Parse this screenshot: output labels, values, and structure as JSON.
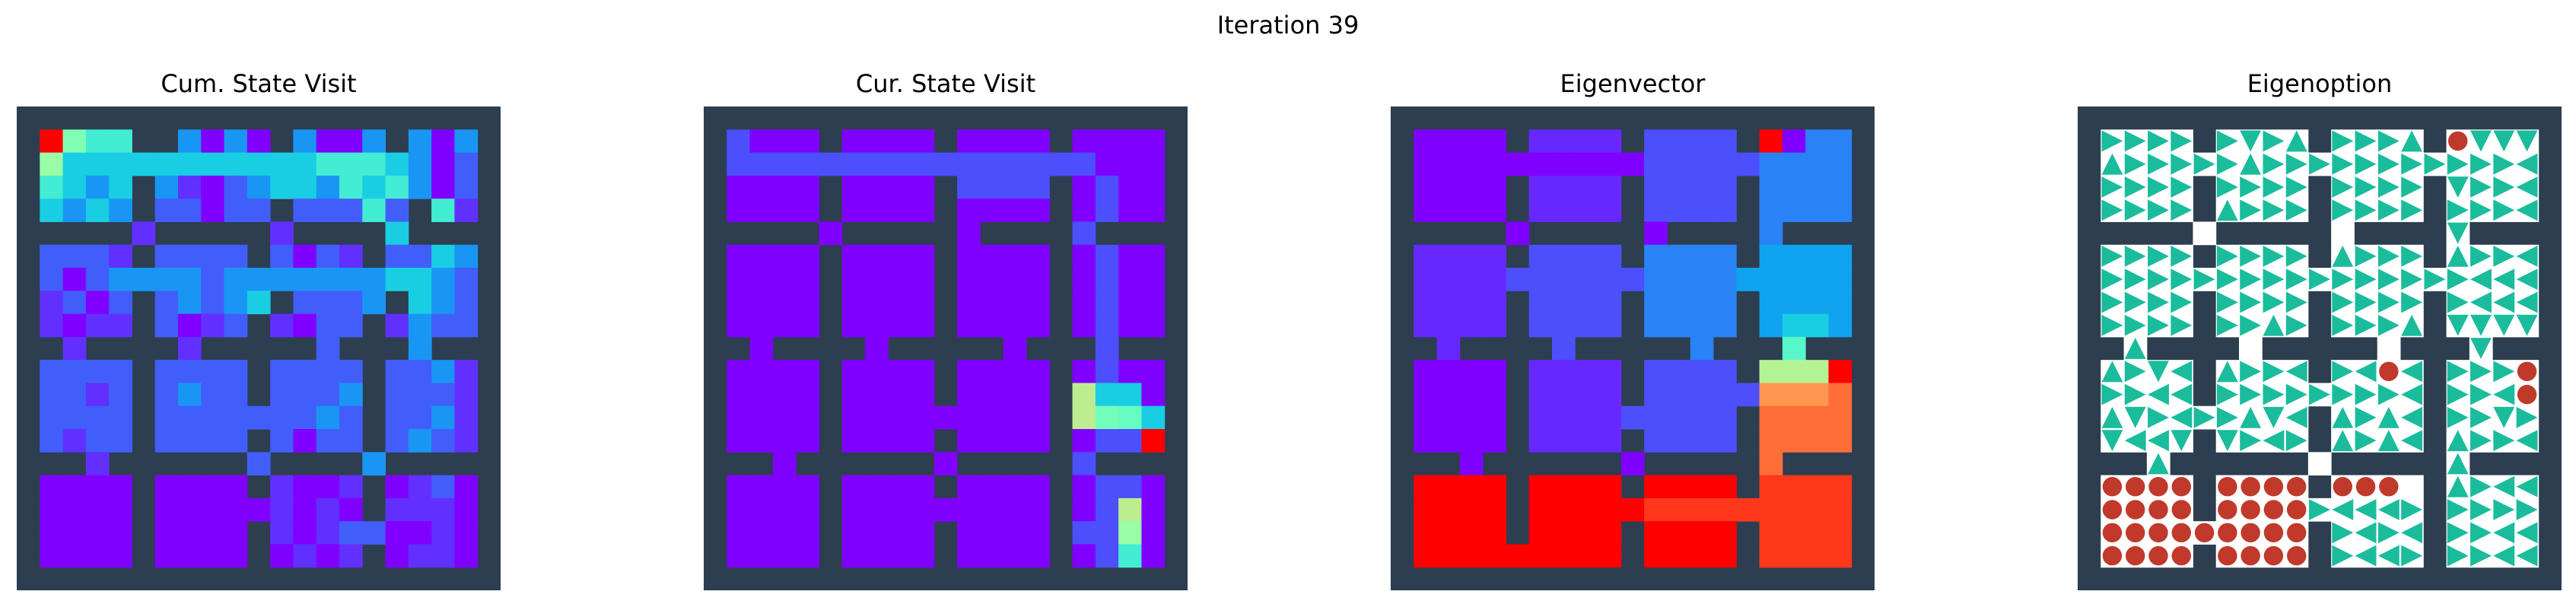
{
  "figure": {
    "title": "Iteration 39"
  },
  "chart_data": [
    {
      "type": "heatmap",
      "title": "Cum. State Visit",
      "encoding": "values 0-1 mapped to rainbow colormap; null = wall",
      "ascii": [
        "#####################",
        "#HFEE##C.C.#C..C#C.C#",
        "#GDDDDDDDDDDDEEEDC.B#",
        "#EDCD#CA.BCDDCEDEC.B#",
        "#DCDC#BB.BB#BBBEB#EA#",
        "#####A#####A####D####",
        "#BBBA#BBBB#B.BA#BBDC#",
        "#B.BCCCCBCCCCCCCDDCB#",
        "#AB.B#BCBCD#BBBC#DCB#",
        "#A.AA#B.AB#A.BB#ACBB#",
        "##A####A#####B###C###",
        "#BBBB#BBBB#BBBB#BBCA#",
        "#BBAB#BCBB#BBBC#BBBA#",
        "#BBBB#BBBBBBBCB#BBCA#",
        "#BABB#BBBB#B.BB#BCBA#",
        "###A######B####C#####",
        "#....#....#A..A#.AB.#",
        "#....#.....A.A.#AAA.#",
        "#....#....#A.ABB..A.#",
        "#....#....#.A.A#.AA.#",
        "#####################"
      ],
      "levels": {
        ".": 0.0,
        "A": 0.06,
        "B": 0.12,
        "C": 0.2,
        "D": 0.3,
        "E": 0.38,
        "F": 0.5,
        "G": 0.55,
        "H": 1.0
      }
    },
    {
      "type": "heatmap",
      "title": "Cur. State Visit",
      "encoding": "values 0-1 mapped to rainbow colormap; null = wall",
      "ascii": [
        "#####################",
        "#A...#....#....#....#",
        "#AAAAAAAAAAAAAAAA...#",
        "#....#....#AAAA#.A..#",
        "#....#....#....#.A..#",
        "#####.#####.####A####",
        "#....#....#....#.A..#",
        "#....#....#....#.A..#",
        "#....#....#....#.A..#",
        "#....#....#....#.A..#",
        "##.####.#####.###A###",
        "#....#....#....#.A..#",
        "#....#....#....#JDD.#",
        "#....#.........#JHFD#",
        "#....#....#....#.AAZ#",
        "###.######.#####A####",
        "#....#....#....#.AA.#",
        "#....#.........#.AJ.#",
        "#....#....#....#AAG.#",
        "#....#....#....#.AE.#",
        "#####################"
      ],
      "levels": {
        ".": 0.0,
        "A": 0.1,
        "D": 0.3,
        "E": 0.38,
        "F": 0.45,
        "G": 0.55,
        "H": 0.48,
        "J": 0.62,
        "Z": 1.0
      }
    },
    {
      "type": "heatmap",
      "title": "Eigenvector",
      "encoding": "values 0-1 mapped to rainbow colormap; null = wall",
      "ascii": [
        "#####################",
        "#....#AAAA#BBBB#Z.CC#",
        "#..........BBBBBCCCC#",
        "#....#AAAA#BBBB#CCCC#",
        "#....#AAAA#BBBB#CCCC#",
        "#####.#####.####C####",
        "#AAAA#BBBB#CCCC#DDDD#",
        "#AAAABBBBBBCCCCDDDDD#",
        "#AAAA#BBBB#CCCC#DDDD#",
        "#AAAA#BBBB#CCCC#DEED#",
        "##A####B#####C###G###",
        "#....#AAAA#BBBB#JJJZ#",
        "#....#AAAA#BBBBBWWWX#",
        "#....#AAAABBBBB#XXXX#",
        "#....#AAAA#BBBB#XXXX#",
        "###.######.#####X####",
        "#ZZZZ#ZZZZ#ZZZZ#YYYY#",
        "#ZZZZ#ZZZZZYYYYYYYYY#",
        "#ZZZZ#ZZZZ#ZZZZ#YYYY#",
        "#ZZZZZZZZZ#ZZZZ#YYYY#",
        "#####################"
      ],
      "levels": {
        ".": 0.0,
        "A": 0.05,
        "B": 0.1,
        "C": 0.17,
        "D": 0.22,
        "E": 0.3,
        "G": 0.42,
        "J": 0.6,
        "W": 0.8,
        "X": 0.86,
        "Y": 0.93,
        "Z": 1.0
      }
    },
    {
      "type": "glyph-grid",
      "title": "Eigenoption",
      "encoding": "U/D/L/R = triangle arrow direction, O = terminate (red circle), # = wall",
      "ascii": [
        "#####################",
        "#RRRR#RDRU#RRRU#ODDD#",
        "#URRRRRURRRRRRRRRRRL#",
        "#RRRR#RRRR#RRRR#DRRL#",
        "#RRRR#URRR#RRRR#RRRL#",
        "#####.#####.####D####",
        "#RRRR#RRRR#URRR#URRL#",
        "#RRRRRRRRRRRRRRRRLLL#",
        "#RRRR#RRRR#RRRR#RLLL#",
        "#RRRR#RRUR#RRRU#DDDD#",
        "##U####.#####.###D###",
        "#URDL#URRL#RLOL#RRRO#",
        "#RRLL#RRRRRRRRL#RRLO#",
        "#UDRLRRUDL#URUL#RRDR#",
        "#DLLD#DRLR#URUL#URRL#",
        "###U######.#####U####",
        "#OOOO#OOOO#OOO.#URLL#",
        "#OOOO#OOOORLLLR#RRRR#",
        "#OOOOOOOOO#RLRL#RRLL#",
        "#OOOO#OOOO#RLLR#RRLL#",
        "#####################"
      ]
    }
  ],
  "colors": {
    "wall": "#2c3e50",
    "arrow": "#1abc9c",
    "terminate": "#c0392b",
    "cell_bg": "#ffffff"
  }
}
